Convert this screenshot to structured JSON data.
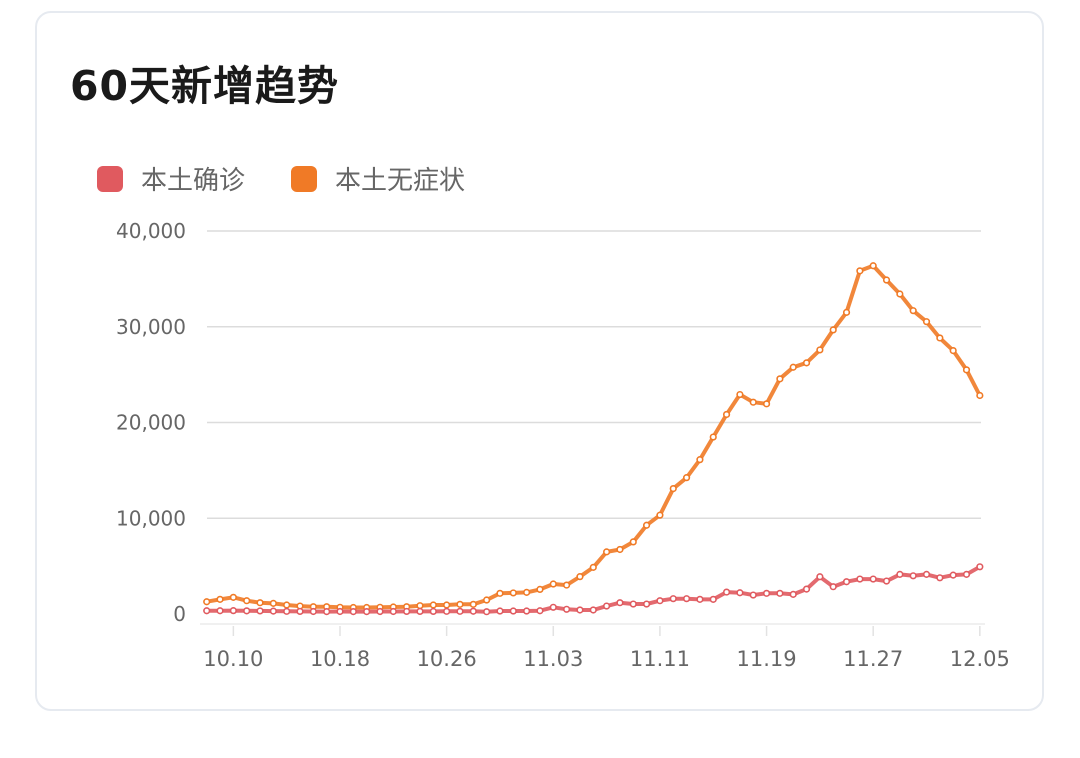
{
  "card": {
    "title": "60天新增趋势"
  },
  "legend": [
    {
      "label": "本土确诊",
      "color": "#e05a5f"
    },
    {
      "label": "本土无症状",
      "color": "#f07a26"
    }
  ],
  "chart_data": {
    "type": "line",
    "title": "60天新增趋势",
    "xlabel": "",
    "ylabel": "",
    "ylim": [
      0,
      40000
    ],
    "y_ticks": [
      "0",
      "10,000",
      "20,000",
      "30,000",
      "40,000"
    ],
    "y_tick_values": [
      0,
      10000,
      20000,
      30000,
      40000
    ],
    "x_tick_labels": [
      "10.10",
      "10.18",
      "10.26",
      "11.03",
      "11.11",
      "11.19",
      "11.27",
      "12.05"
    ],
    "x_tick_indices": [
      2,
      10,
      18,
      26,
      34,
      42,
      50,
      58
    ],
    "grid": true,
    "legend_position": "top-left",
    "x": [
      "10.08",
      "10.09",
      "10.10",
      "10.11",
      "10.12",
      "10.13",
      "10.14",
      "10.15",
      "10.16",
      "10.17",
      "10.18",
      "10.19",
      "10.20",
      "10.21",
      "10.22",
      "10.23",
      "10.24",
      "10.25",
      "10.26",
      "10.27",
      "10.28",
      "10.29",
      "10.30",
      "10.31",
      "11.01",
      "11.02",
      "11.03",
      "11.04",
      "11.05",
      "11.06",
      "11.07",
      "11.08",
      "11.09",
      "11.10",
      "11.11",
      "11.12",
      "11.13",
      "11.14",
      "11.15",
      "11.16",
      "11.17",
      "11.18",
      "11.19",
      "11.20",
      "11.21",
      "11.22",
      "11.23",
      "11.24",
      "11.25",
      "11.26",
      "11.27",
      "11.28",
      "11.29",
      "11.30",
      "12.01",
      "12.02",
      "12.03",
      "12.04",
      "12.05"
    ],
    "series": [
      {
        "name": "本土确诊",
        "color": "#e05a5f",
        "values": [
          340,
          340,
          350,
          330,
          320,
          300,
          280,
          270,
          260,
          250,
          260,
          250,
          250,
          260,
          260,
          270,
          270,
          270,
          280,
          280,
          290,
          240,
          310,
          310,
          310,
          340,
          700,
          490,
          420,
          420,
          830,
          1180,
          1040,
          1040,
          1390,
          1600,
          1600,
          1530,
          1530,
          2290,
          2220,
          1980,
          2160,
          2160,
          2050,
          2600,
          3890,
          2850,
          3370,
          3650,
          3650,
          3440,
          4140,
          3990,
          4140,
          3780,
          4060,
          4140,
          4930
        ]
      },
      {
        "name": "本土无症状",
        "color": "#f07a26",
        "values": [
          1280,
          1530,
          1740,
          1390,
          1180,
          1110,
          940,
          830,
          760,
          760,
          700,
          680,
          680,
          700,
          730,
          760,
          870,
          940,
          940,
          1010,
          1010,
          1460,
          2160,
          2200,
          2260,
          2570,
          3130,
          3020,
          3900,
          4870,
          6490,
          6740,
          7530,
          9270,
          10320,
          13100,
          14240,
          16120,
          18480,
          20840,
          22920,
          22120,
          21950,
          24560,
          25770,
          26230,
          27580,
          29670,
          31500,
          35840,
          36370,
          34880,
          33420,
          31680,
          30530,
          28830,
          27510,
          25500,
          22820
        ]
      }
    ]
  }
}
